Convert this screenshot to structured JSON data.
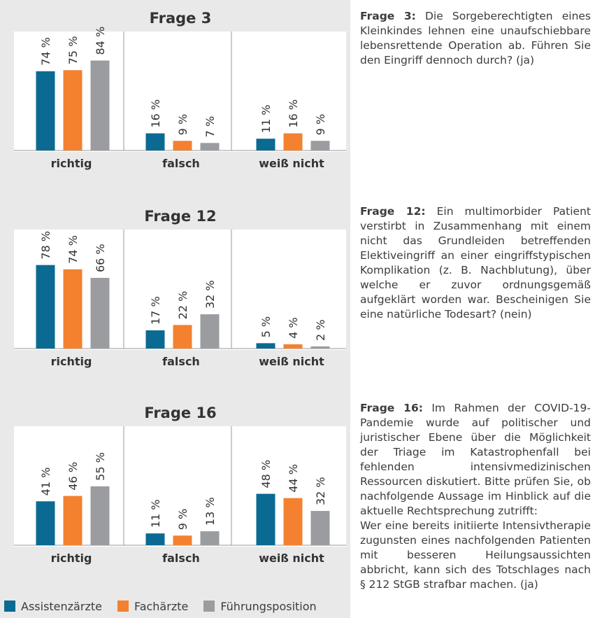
{
  "colors": {
    "panel_bg": "#e9e9e9",
    "assistenz": "#0b6a92",
    "facharzt": "#f3812f",
    "fuehrung": "#9b9ca0"
  },
  "legend": [
    {
      "label": "Assistenzärzte",
      "color": "#0b6a92"
    },
    {
      "label": "Fachärzte",
      "color": "#f3812f"
    },
    {
      "label": "Führungsposition",
      "color": "#9b9ca0"
    }
  ],
  "chart_data": [
    {
      "type": "bar",
      "title": "Frage 3",
      "categories": [
        "richtig",
        "falsch",
        "weiß nicht"
      ],
      "series": [
        {
          "name": "Assistenzärzte",
          "values": [
            74,
            16,
            11
          ]
        },
        {
          "name": "Fachärzte",
          "values": [
            75,
            9,
            16
          ]
        },
        {
          "name": "Führungsposition",
          "values": [
            84,
            7,
            9
          ]
        }
      ],
      "value_suffix": " %",
      "ylim": [
        0,
        100
      ]
    },
    {
      "type": "bar",
      "title": "Frage 12",
      "categories": [
        "richtig",
        "falsch",
        "weiß nicht"
      ],
      "series": [
        {
          "name": "Assistenzärzte",
          "values": [
            78,
            17,
            5
          ]
        },
        {
          "name": "Fachärzte",
          "values": [
            74,
            22,
            4
          ]
        },
        {
          "name": "Führungsposition",
          "values": [
            66,
            32,
            2
          ]
        }
      ],
      "value_suffix": " %",
      "ylim": [
        0,
        100
      ]
    },
    {
      "type": "bar",
      "title": "Frage 16",
      "categories": [
        "richtig",
        "falsch",
        "weiß nicht"
      ],
      "series": [
        {
          "name": "Assistenzärzte",
          "values": [
            41,
            11,
            48
          ]
        },
        {
          "name": "Fachärzte",
          "values": [
            46,
            9,
            44
          ]
        },
        {
          "name": "Führungsposition",
          "values": [
            55,
            13,
            32
          ]
        }
      ],
      "value_suffix": " %",
      "ylim": [
        0,
        100
      ]
    }
  ],
  "questions": [
    {
      "heading": "Frage 3:",
      "text": "Die Sorgeberechtigten eines Kleinkindes lehnen eine unaufschiebbare lebensrettende Operation ab. Führen Sie den Eingriff dennoch durch? (ja)"
    },
    {
      "heading": "Frage 12:",
      "text": "Ein multimorbider Patient verstirbt in Zusammenhang mit einem nicht das Grundleiden betreffenden Elektiveingriff an einer eingriffstypischen Komplikation (z. B. Nachblutung), über welche er zuvor ordnungsgemäß aufgeklärt worden war. Bescheinigen Sie eine natürliche Todesart? (nein)"
    },
    {
      "heading": "Frage 16:",
      "text": "Im Rahmen der COVID-19-Pandemie wurde auf politischer und juristischer Ebene über die Möglichkeit der Triage im Katastrophenfall bei fehlenden intensivmedizinischen Ressourcen diskutiert. Bitte prüfen Sie, ob nachfolgende Aussage im Hinblick auf die aktuelle Rechtsprechung zutrifft:",
      "text2": "Wer eine bereits initiierte Intensivtherapie zugunsten eines nachfolgenden Patienten mit besseren Heilungsaussichten abbricht, kann sich des Totschlages nach § 212 StGB strafbar machen. (ja)"
    }
  ]
}
